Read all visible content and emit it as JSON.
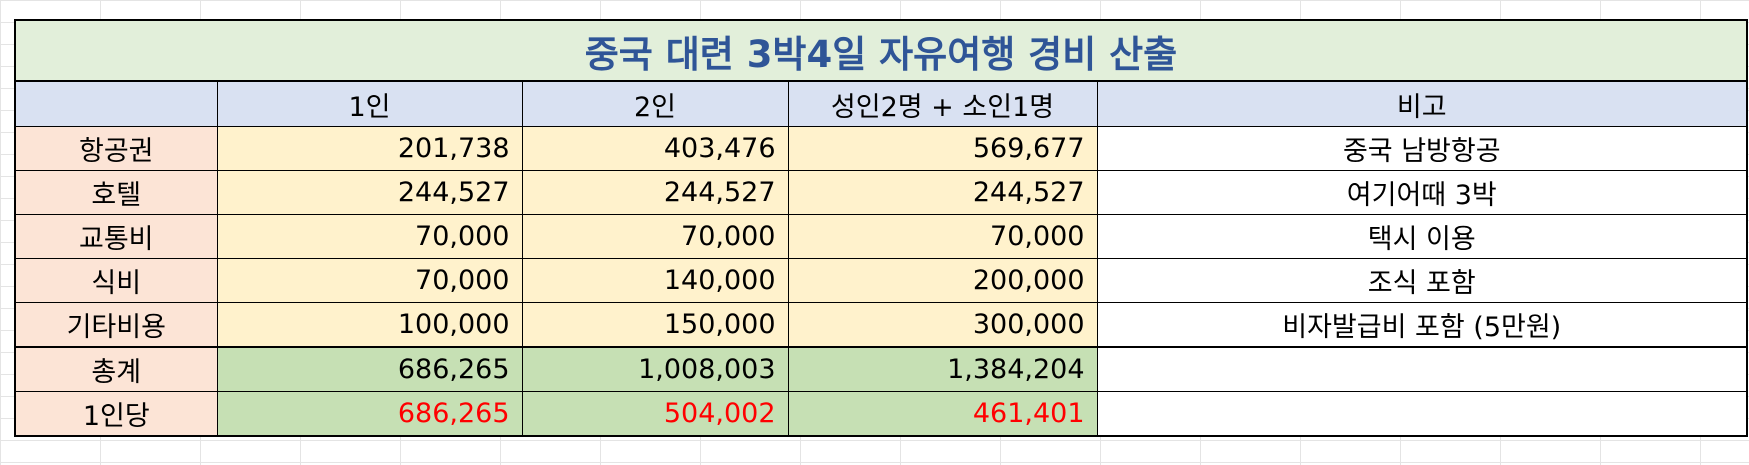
{
  "title": "중국 대련 3박4일 자유여행 경비 산출",
  "headers": [
    "",
    "1인",
    "2인",
    "성인2명 + 소인1명",
    "비고"
  ],
  "rows": [
    {
      "label": "항공권",
      "v1": "201,738",
      "v2": "403,476",
      "v3": "569,677",
      "note": "중국 남방항공"
    },
    {
      "label": "호텔",
      "v1": "244,527",
      "v2": "244,527",
      "v3": "244,527",
      "note": "여기어때 3박"
    },
    {
      "label": "교통비",
      "v1": "70,000",
      "v2": "70,000",
      "v3": "70,000",
      "note": "택시 이용"
    },
    {
      "label": "식비",
      "v1": "70,000",
      "v2": "140,000",
      "v3": "200,000",
      "note": "조식 포함"
    },
    {
      "label": "기타비용",
      "v1": "100,000",
      "v2": "150,000",
      "v3": "300,000",
      "note": "비자발급비 포함 (5만원)"
    }
  ],
  "total": {
    "label": "총계",
    "v1": "686,265",
    "v2": "1,008,003",
    "v3": "1,384,204",
    "note": ""
  },
  "per_person": {
    "label": "1인당",
    "v1": "686,265",
    "v2": "504,002",
    "v3": "461,401",
    "note": ""
  },
  "colors": {
    "title_text": "#2f5597",
    "title_bg": "#e2efda",
    "header_bg": "#d9e1f2",
    "label_bg": "#fce4d6",
    "value_bg": "#fff2cc",
    "summary_bg": "#c6e0b4",
    "per_person_text": "#ff0000"
  }
}
